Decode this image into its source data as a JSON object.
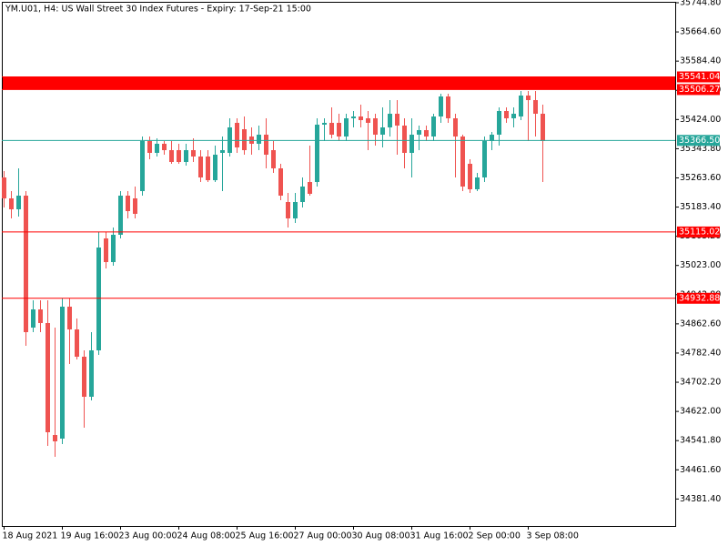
{
  "chart_data": {
    "type": "candlestick",
    "title": "YM.U01, H4:  US Wall Street 30 Index Futures - Expiry: 17-Sep-21 15:00",
    "categories": [
      "18 Aug 2021",
      null,
      null,
      null,
      null,
      null,
      null,
      null,
      "19 Aug 16:00",
      null,
      null,
      null,
      null,
      null,
      null,
      null,
      "23 Aug 00:00",
      null,
      null,
      null,
      null,
      null,
      null,
      null,
      "24 Aug 08:00",
      null,
      null,
      null,
      null,
      null,
      null,
      null,
      "25 Aug 16:00",
      null,
      null,
      null,
      null,
      null,
      null,
      null,
      "27 Aug 00:00",
      null,
      null,
      null,
      null,
      null,
      null,
      null,
      "30 Aug 08:00",
      null,
      null,
      null,
      null,
      null,
      null,
      null,
      "31 Aug 16:00",
      null,
      null,
      null,
      null,
      null,
      null,
      null,
      "2 Sep 00:00",
      null,
      null,
      null,
      null,
      null,
      null,
      null,
      "3 Sep 08:00",
      null,
      null
    ],
    "open": [
      35264.8,
      35207.3,
      35177.3,
      35214.8,
      34852.3,
      34902.3,
      34864.8,
      34557.3,
      34547.3,
      34909.8,
      34847.3,
      34772.3,
      34662.3,
      34789.8,
      35097.3,
      35032.3,
      35107.3,
      35214.8,
      35207.3,
      35227.3,
      35364.8,
      35332.3,
      35357.3,
      35339.8,
      35339.8,
      35307.3,
      35339.8,
      35322.3,
      35322.3,
      35257.3,
      35332.3,
      35332.3,
      35414.8,
      35397.3,
      35377.3,
      35357.3,
      35382.3,
      35339.8,
      35289.8,
      35197.3,
      35152.3,
      35197.3,
      35252.3,
      35252.3,
      35409.8,
      35414.8,
      35414.8,
      35377.3,
      35427.3,
      35432.3,
      35427.3,
      35427.3,
      35382.3,
      35402.3,
      35439.8,
      35407.3,
      35332.3,
      35382.3,
      35394.8,
      35377.3,
      35432.3,
      35487.3,
      35427.3,
      35377.3,
      35302.3,
      35232.3,
      35264.8,
      35364.8,
      35382.3,
      35447.3,
      35427.3,
      35432.3,
      35489.8,
      35477.3,
      35439.8
    ],
    "high": [
      35282.3,
      35227.3,
      35289.8,
      35227.3,
      34927.3,
      34927.3,
      34927.3,
      34852.3,
      34932.3,
      34932.3,
      34877.3,
      34789.8,
      34839.8,
      35114.8,
      35114.8,
      35127.3,
      35227.3,
      35227.3,
      35239.8,
      35377.3,
      35377.3,
      35372.3,
      35364.8,
      35364.8,
      35357.3,
      35357.3,
      35372.3,
      35339.8,
      35339.8,
      35352.3,
      35377.3,
      35427.3,
      35427.3,
      35432.3,
      35402.3,
      35407.3,
      35427.3,
      35364.8,
      35302.3,
      35222.3,
      35222.3,
      35264.8,
      35352.3,
      35427.3,
      35427.3,
      35457.3,
      35439.8,
      35439.8,
      35447.3,
      35464.8,
      35447.3,
      35439.8,
      35457.3,
      35477.3,
      35477.3,
      35427.3,
      35427.3,
      35407.3,
      35407.3,
      35439.8,
      35494.8,
      35494.8,
      35439.8,
      35382.3,
      35314.8,
      35277.3,
      35377.3,
      35389.8,
      35457.3,
      35457.3,
      35457.3,
      35502.3,
      35502.3,
      35502.3,
      35464.8
    ],
    "low": [
      35182.3,
      35152.3,
      35157.3,
      34802.3,
      34839.8,
      34839.8,
      34527.3,
      34497.3,
      34532.3,
      34752.3,
      34764.8,
      34577.3,
      34652.3,
      34777.3,
      35014.8,
      35022.3,
      35097.3,
      35152.3,
      35152.3,
      35214.8,
      35314.8,
      35322.3,
      35327.3,
      35302.3,
      35302.3,
      35297.3,
      35307.3,
      35252.3,
      35252.3,
      35252.3,
      35227.3,
      35322.3,
      35332.3,
      35327.3,
      35327.3,
      35339.8,
      35289.8,
      35277.3,
      35202.3,
      35127.3,
      35139.8,
      35182.3,
      35214.8,
      35239.8,
      35364.8,
      35372.3,
      35364.8,
      35364.8,
      35402.3,
      35402.3,
      35339.8,
      35352.3,
      35347.3,
      35377.3,
      35327.3,
      35289.8,
      35264.8,
      35339.8,
      35364.8,
      35364.8,
      35414.8,
      35414.8,
      35264.8,
      35227.3,
      35222.3,
      35227.3,
      35252.3,
      35339.8,
      35352.3,
      35414.8,
      35402.3,
      35422.3,
      35364.8,
      35377.3,
      35252.3
    ],
    "close": [
      35207.3,
      35177.3,
      35214.8,
      34839.8,
      34902.3,
      34864.8,
      34564.8,
      34539.8,
      34909.8,
      34847.3,
      34772.3,
      34662.3,
      34789.8,
      35072.3,
      35032.3,
      35107.3,
      35214.8,
      35172.3,
      35164.8,
      35364.8,
      35332.3,
      35357.3,
      35339.8,
      35307.3,
      35307.3,
      35339.8,
      35322.3,
      35264.8,
      35257.3,
      35327.3,
      35339.8,
      35402.3,
      35347.3,
      35339.8,
      35357.3,
      35382.3,
      35327.3,
      35289.8,
      35214.8,
      35152.3,
      35197.3,
      35239.8,
      35219.8,
      35409.8,
      35414.8,
      35382.3,
      35377.3,
      35427.3,
      35432.3,
      35422.3,
      35414.8,
      35382.3,
      35402.3,
      35439.8,
      35407.3,
      35332.3,
      35382.3,
      35394.8,
      35377.3,
      35432.3,
      35487.3,
      35427.3,
      35377.3,
      35239.8,
      35232.3,
      35264.8,
      35364.8,
      35382.3,
      35447.3,
      35427.3,
      35439.8,
      35489.8,
      35477.3,
      35439.8,
      35364.8
    ],
    "up_color": "#26a69a",
    "down_color": "#ef5350",
    "levels": [
      {
        "value": 35541.04,
        "label": "35541.04",
        "color": "#ff0000"
      },
      {
        "value": 35506.27,
        "label": "35506.27",
        "color": "#ff0000"
      },
      {
        "value": 35366.5,
        "label": "35366.50",
        "color": "#26a69a"
      },
      {
        "value": 35115.02,
        "label": "35115.02",
        "color": "#ff0000"
      },
      {
        "value": 34932.88,
        "label": "34932.88",
        "color": "#ff0000"
      }
    ],
    "zone_color": "#ff0000",
    "ylim": [
      34307.3,
      35747.3
    ],
    "yticks": [
      {
        "value": 35744.8,
        "label": "35744.80"
      },
      {
        "value": 35664.6,
        "label": "35664.60"
      },
      {
        "value": 35584.4,
        "label": "35584.40"
      },
      {
        "value": 35504.2,
        "label": "35504.20"
      },
      {
        "value": 35424,
        "label": "35424.00"
      },
      {
        "value": 35343.8,
        "label": "35343.80"
      },
      {
        "value": 35263.6,
        "label": "35263.60"
      },
      {
        "value": 35183.4,
        "label": "35183.40"
      },
      {
        "value": 35103.2,
        "label": "35103.20"
      },
      {
        "value": 35023,
        "label": "35023.00"
      },
      {
        "value": 34942.8,
        "label": "34942.80"
      },
      {
        "value": 34862.6,
        "label": "34862.60"
      },
      {
        "value": 34782.4,
        "label": "34782.40"
      },
      {
        "value": 34702.2,
        "label": "34702.20"
      },
      {
        "value": 34622,
        "label": "34622.00"
      },
      {
        "value": 34541.8,
        "label": "34541.80"
      },
      {
        "value": 34461.6,
        "label": "34461.60"
      },
      {
        "value": 34381.4,
        "label": "34381.40"
      }
    ]
  }
}
